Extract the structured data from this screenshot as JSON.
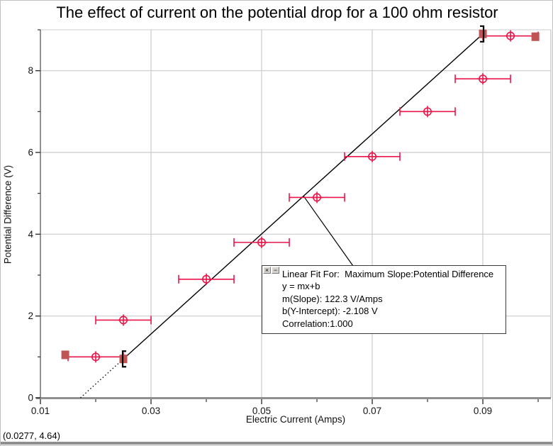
{
  "status_bar": {
    "coordinates": "(0.0277, 4.64)"
  },
  "annotation": {
    "buttons": [
      {
        "glyph": "×"
      },
      {
        "glyph": "−"
      }
    ],
    "lines": [
      "Linear Fit For:  Maximum Slope:Potential Difference",
      "y = mx+b",
      "m(Slope): 122.3 V/Amps",
      "b(Y-Intercept): -2.108 V",
      "Correlation:1.000"
    ]
  },
  "chart_data": {
    "type": "scatter",
    "title": "The effect of current on the potential drop for a 100 ohm resistor",
    "xlabel": "Electric Current (Amps)",
    "ylabel": "Potential Difference (V)",
    "xlim": [
      0.01,
      0.1023
    ],
    "ylim": [
      0,
      9.0
    ],
    "grid": true,
    "grid_x": [
      0.03,
      0.05,
      0.07,
      0.09
    ],
    "grid_y": [
      2,
      4,
      6,
      8
    ],
    "x_major_ticks": [
      {
        "v": 0.01,
        "label": "0.01"
      },
      {
        "v": 0.03,
        "label": "0.03"
      },
      {
        "v": 0.05,
        "label": "0.05"
      },
      {
        "v": 0.07,
        "label": "0.07"
      },
      {
        "v": 0.09,
        "label": "0.09"
      }
    ],
    "x_minor_ticks": [
      0.02,
      0.04,
      0.06,
      0.08,
      0.1
    ],
    "y_major_ticks": [
      {
        "v": 0,
        "label": "0"
      },
      {
        "v": 2,
        "label": "2"
      },
      {
        "v": 4,
        "label": "4"
      },
      {
        "v": 6,
        "label": "6"
      },
      {
        "v": 8,
        "label": "8"
      }
    ],
    "y_minor_ticks": [
      1,
      3,
      5,
      7,
      9
    ],
    "series": [
      {
        "name": "Maximum Slope:Potential Difference",
        "color": "#ea1549",
        "marker": "circle-plus",
        "x_error": 0.005,
        "points": [
          {
            "x": 0.02,
            "y": 1.0
          },
          {
            "x": 0.025,
            "y": 1.9
          },
          {
            "x": 0.04,
            "y": 2.9
          },
          {
            "x": 0.05,
            "y": 3.8
          },
          {
            "x": 0.06,
            "y": 4.9
          },
          {
            "x": 0.07,
            "y": 5.9
          },
          {
            "x": 0.08,
            "y": 7.0
          },
          {
            "x": 0.09,
            "y": 7.8
          },
          {
            "x": 0.095,
            "y": 8.85
          }
        ]
      }
    ],
    "linear_fit": {
      "label": "Linear Fit For:  Maximum Slope:Potential Difference",
      "equation": "y = mx+b",
      "slope": 122.3,
      "slope_units": "V/Amps",
      "intercept": -2.108,
      "intercept_units": "V",
      "correlation": "1.000",
      "fit_range_x": [
        0.025,
        0.09
      ],
      "handles": [
        {
          "x": 0.0145,
          "y": 1.05
        },
        {
          "x": 0.025,
          "y": 0.95
        },
        {
          "x": 0.09,
          "y": 8.9
        },
        {
          "x": 0.0995,
          "y": 8.83
        }
      ],
      "handle_color": "#c05454",
      "line_color": "#000000",
      "callout_anchor": {
        "x": 0.0576,
        "y": 4.93
      }
    }
  }
}
